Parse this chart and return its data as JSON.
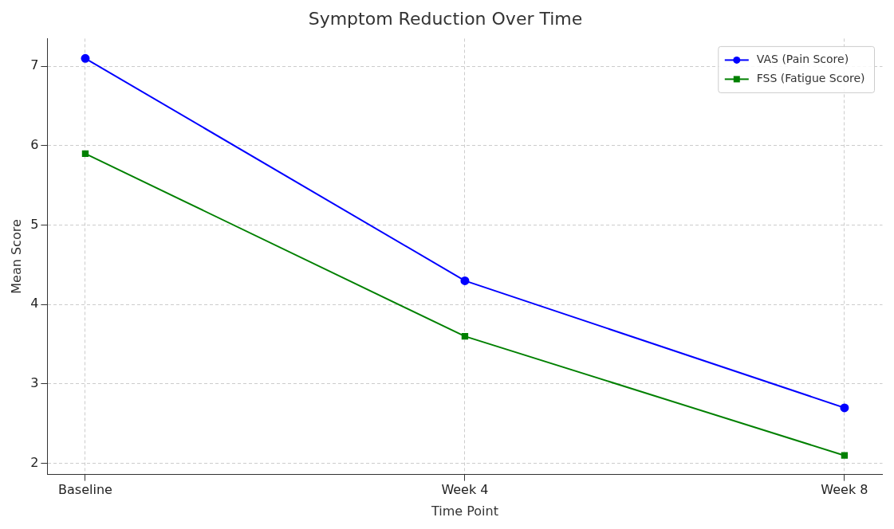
{
  "chart_data": {
    "type": "line",
    "title": "Symptom Reduction Over Time",
    "xlabel": "Time Point",
    "ylabel": "Mean Score",
    "categories": [
      "Baseline",
      "Week 4",
      "Week 8"
    ],
    "series": [
      {
        "name": "VAS (Pain Score)",
        "color": "#0000ff",
        "marker": "circle",
        "values": [
          7.1,
          4.3,
          2.7
        ]
      },
      {
        "name": "FSS (Fatigue Score)",
        "color": "#008000",
        "marker": "square",
        "values": [
          5.9,
          3.6,
          2.1
        ]
      }
    ],
    "ylim": [
      1.86,
      7.35
    ],
    "yticks": [
      2,
      3,
      4,
      5,
      6,
      7
    ],
    "grid": true,
    "legend": "top right",
    "line_style": "solid"
  }
}
